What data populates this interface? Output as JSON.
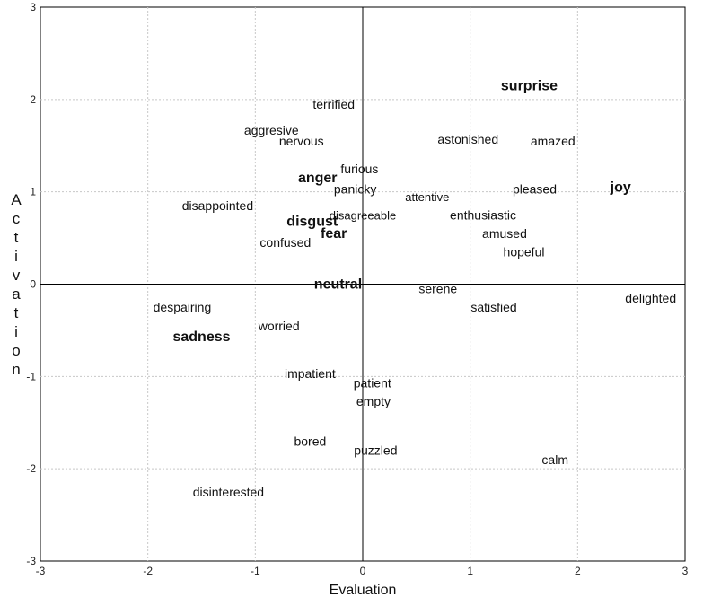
{
  "chart_data": {
    "type": "scatter",
    "xlabel": "Evaluation",
    "ylabel": "Activation",
    "xlim": [
      -3,
      3
    ],
    "ylim": [
      -3,
      3
    ],
    "xticks": [
      -3,
      -2,
      -1,
      0,
      1,
      2,
      3
    ],
    "yticks": [
      -3,
      -2,
      -1,
      0,
      1,
      2,
      3
    ],
    "grid": true,
    "primary_color": "#e02020",
    "text_color": "#111111",
    "points": [
      {
        "label": "surprise",
        "x": 1.55,
        "y": 2.15,
        "primary": true
      },
      {
        "label": "terrified",
        "x": -0.27,
        "y": 1.95
      },
      {
        "label": "aggresive",
        "x": -0.85,
        "y": 1.67
      },
      {
        "label": "nervous",
        "x": -0.57,
        "y": 1.55
      },
      {
        "label": "astonished",
        "x": 0.98,
        "y": 1.57
      },
      {
        "label": "amazed",
        "x": 1.77,
        "y": 1.55
      },
      {
        "label": "furious",
        "x": -0.03,
        "y": 1.25
      },
      {
        "label": "anger",
        "x": -0.42,
        "y": 1.15,
        "primary": true
      },
      {
        "label": "panicky",
        "x": -0.07,
        "y": 1.03
      },
      {
        "label": "attentive",
        "x": 0.6,
        "y": 0.95,
        "small": true
      },
      {
        "label": "pleased",
        "x": 1.6,
        "y": 1.03
      },
      {
        "label": "joy",
        "x": 2.4,
        "y": 1.05,
        "primary": true
      },
      {
        "label": "disappointed",
        "x": -1.35,
        "y": 0.85
      },
      {
        "label": "disgust",
        "x": -0.47,
        "y": 0.68,
        "primary": true
      },
      {
        "label": "disagreeable",
        "x": 0.0,
        "y": 0.75,
        "small": true
      },
      {
        "label": "enthusiastic",
        "x": 1.12,
        "y": 0.75
      },
      {
        "label": "fear",
        "x": -0.27,
        "y": 0.55,
        "primary": true
      },
      {
        "label": "amused",
        "x": 1.32,
        "y": 0.55
      },
      {
        "label": "confused",
        "x": -0.72,
        "y": 0.45
      },
      {
        "label": "hopeful",
        "x": 1.5,
        "y": 0.35
      },
      {
        "label": "neutral",
        "x": -0.23,
        "y": 0.0,
        "primary": true
      },
      {
        "label": "serene",
        "x": 0.7,
        "y": -0.05
      },
      {
        "label": "delighted",
        "x": 2.68,
        "y": -0.15
      },
      {
        "label": "despairing",
        "x": -1.68,
        "y": -0.25
      },
      {
        "label": "satisfied",
        "x": 1.22,
        "y": -0.25
      },
      {
        "label": "worried",
        "x": -0.78,
        "y": -0.45
      },
      {
        "label": "sadness",
        "x": -1.5,
        "y": -0.57,
        "primary": true
      },
      {
        "label": "impatient",
        "x": -0.49,
        "y": -0.97
      },
      {
        "label": "patient",
        "x": 0.09,
        "y": -1.07
      },
      {
        "label": "empty",
        "x": 0.1,
        "y": -1.27
      },
      {
        "label": "bored",
        "x": -0.49,
        "y": -1.7
      },
      {
        "label": "puzzled",
        "x": 0.12,
        "y": -1.8
      },
      {
        "label": "calm",
        "x": 1.79,
        "y": -1.9
      },
      {
        "label": "disinterested",
        "x": -1.25,
        "y": -2.25
      }
    ]
  }
}
